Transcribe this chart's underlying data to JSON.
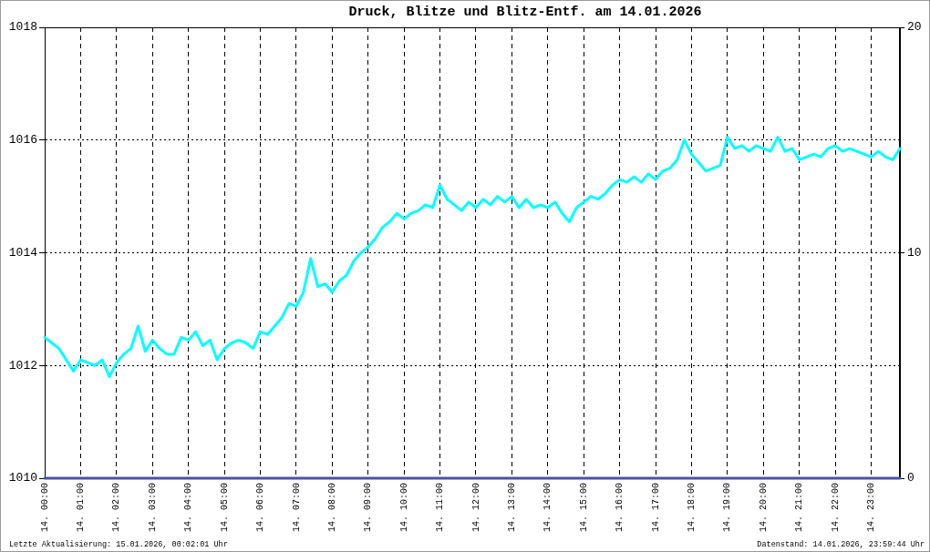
{
  "chart_data": {
    "type": "line",
    "title": "Druck, Blitze und Blitz-Entf. am 14.01.2026",
    "annotations": [
      "Letzte Aktualisierung: 15.01.2026, 00:02:01 Uhr",
      "Datenstand: 14.01.2026, 23:59:44 Uhr"
    ],
    "categories": [
      "14. 00:00",
      null,
      null,
      null,
      null,
      "14. 01:00",
      null,
      null,
      null,
      null,
      "14. 02:00",
      null,
      null,
      null,
      null,
      "14. 03:00",
      null,
      null,
      null,
      null,
      "14. 04:00",
      null,
      null,
      null,
      null,
      "14. 05:00",
      null,
      null,
      null,
      null,
      "14. 06:00",
      null,
      null,
      null,
      null,
      "14. 07:00",
      null,
      null,
      null,
      null,
      "14. 08:00",
      null,
      null,
      null,
      null,
      "14. 09:00",
      null,
      null,
      null,
      null,
      "14. 10:00",
      null,
      null,
      null,
      null,
      "14. 11:00",
      null,
      null,
      null,
      null,
      "14. 12:00",
      null,
      null,
      null,
      null,
      "14. 13:00",
      null,
      null,
      null,
      null,
      "14. 14:00",
      null,
      null,
      null,
      null,
      "14. 15:00",
      null,
      null,
      null,
      null,
      "14. 16:00",
      null,
      null,
      null,
      null,
      "14. 17:00",
      null,
      null,
      null,
      null,
      "14. 18:00",
      null,
      null,
      null,
      null,
      "14. 19:00",
      null,
      null,
      null,
      null,
      "14. 20:00",
      null,
      null,
      null,
      null,
      "14. 21:00",
      null,
      null,
      null,
      null,
      "14. 22:00",
      null,
      null,
      null,
      null,
      "14. 23:00",
      null,
      null,
      null,
      null
    ],
    "series": [
      {
        "color": "#00ffff",
        "values": [
          1012.5,
          1012.4,
          1012.3,
          1012.1,
          1011.9,
          1012.1,
          1012.05,
          1012.0,
          1012.1,
          1011.8,
          1012.05,
          1012.2,
          1012.3,
          1012.7,
          1012.25,
          1012.45,
          1012.3,
          1012.2,
          1012.2,
          1012.5,
          1012.45,
          1012.6,
          1012.35,
          1012.45,
          1012.1,
          1012.3,
          1012.4,
          1012.45,
          1012.4,
          1012.3,
          1012.6,
          1012.55,
          1012.7,
          1012.85,
          1013.1,
          1013.05,
          1013.3,
          1013.9,
          1013.4,
          1013.45,
          1013.3,
          1013.5,
          1013.6,
          1013.85,
          1014.0,
          1014.1,
          1014.25,
          1014.45,
          1014.55,
          1014.7,
          1014.6,
          1014.7,
          1014.75,
          1014.85,
          1014.8,
          1015.2,
          1014.95,
          1014.85,
          1014.75,
          1014.9,
          1014.8,
          1014.95,
          1014.85,
          1015.0,
          1014.9,
          1015.0,
          1014.8,
          1014.95,
          1014.8,
          1014.85,
          1014.8,
          1014.9,
          1014.7,
          1014.55,
          1014.8,
          1014.9,
          1015.0,
          1014.95,
          1015.05,
          1015.2,
          1015.3,
          1015.25,
          1015.35,
          1015.25,
          1015.4,
          1015.3,
          1015.45,
          1015.5,
          1015.65,
          1016.0,
          1015.75,
          1015.6,
          1015.45,
          1015.5,
          1015.55,
          1016.05,
          1015.85,
          1015.9,
          1015.8,
          1015.9,
          1015.85,
          1015.8,
          1016.05,
          1015.8,
          1015.85,
          1015.65,
          1015.7,
          1015.75,
          1015.7,
          1015.85,
          1015.9,
          1015.8,
          1015.85,
          1015.8,
          1015.75,
          1015.7,
          1015.8,
          1015.7,
          1015.65,
          1015.85
        ]
      },
      {
        "color": "#5050a0",
        "axis": "y2",
        "values": [
          0,
          0,
          0,
          0,
          0,
          0,
          0,
          0,
          0,
          0,
          0,
          0,
          0,
          0,
          0,
          0,
          0,
          0,
          0,
          0,
          0,
          0,
          0,
          0,
          0,
          0,
          0,
          0,
          0,
          0,
          0,
          0,
          0,
          0,
          0,
          0,
          0,
          0,
          0,
          0,
          0,
          0,
          0,
          0,
          0,
          0,
          0,
          0,
          0,
          0,
          0,
          0,
          0,
          0,
          0,
          0,
          0,
          0,
          0,
          0,
          0,
          0,
          0,
          0,
          0,
          0,
          0,
          0,
          0,
          0,
          0,
          0,
          0,
          0,
          0,
          0,
          0,
          0,
          0,
          0,
          0,
          0,
          0,
          0,
          0,
          0,
          0,
          0,
          0,
          0,
          0,
          0,
          0,
          0,
          0,
          0,
          0,
          0,
          0,
          0,
          0,
          0,
          0,
          0,
          0,
          0,
          0,
          0,
          0,
          0,
          0,
          0,
          0,
          0,
          0,
          0,
          0,
          0,
          0,
          0
        ]
      }
    ],
    "ylim": [
      1010,
      1018
    ],
    "yticks": [
      1010,
      1012,
      1014,
      1016,
      1018
    ],
    "y2lim": [
      0,
      20
    ],
    "y2ticks": [
      0,
      10,
      20
    ],
    "grid": true
  }
}
